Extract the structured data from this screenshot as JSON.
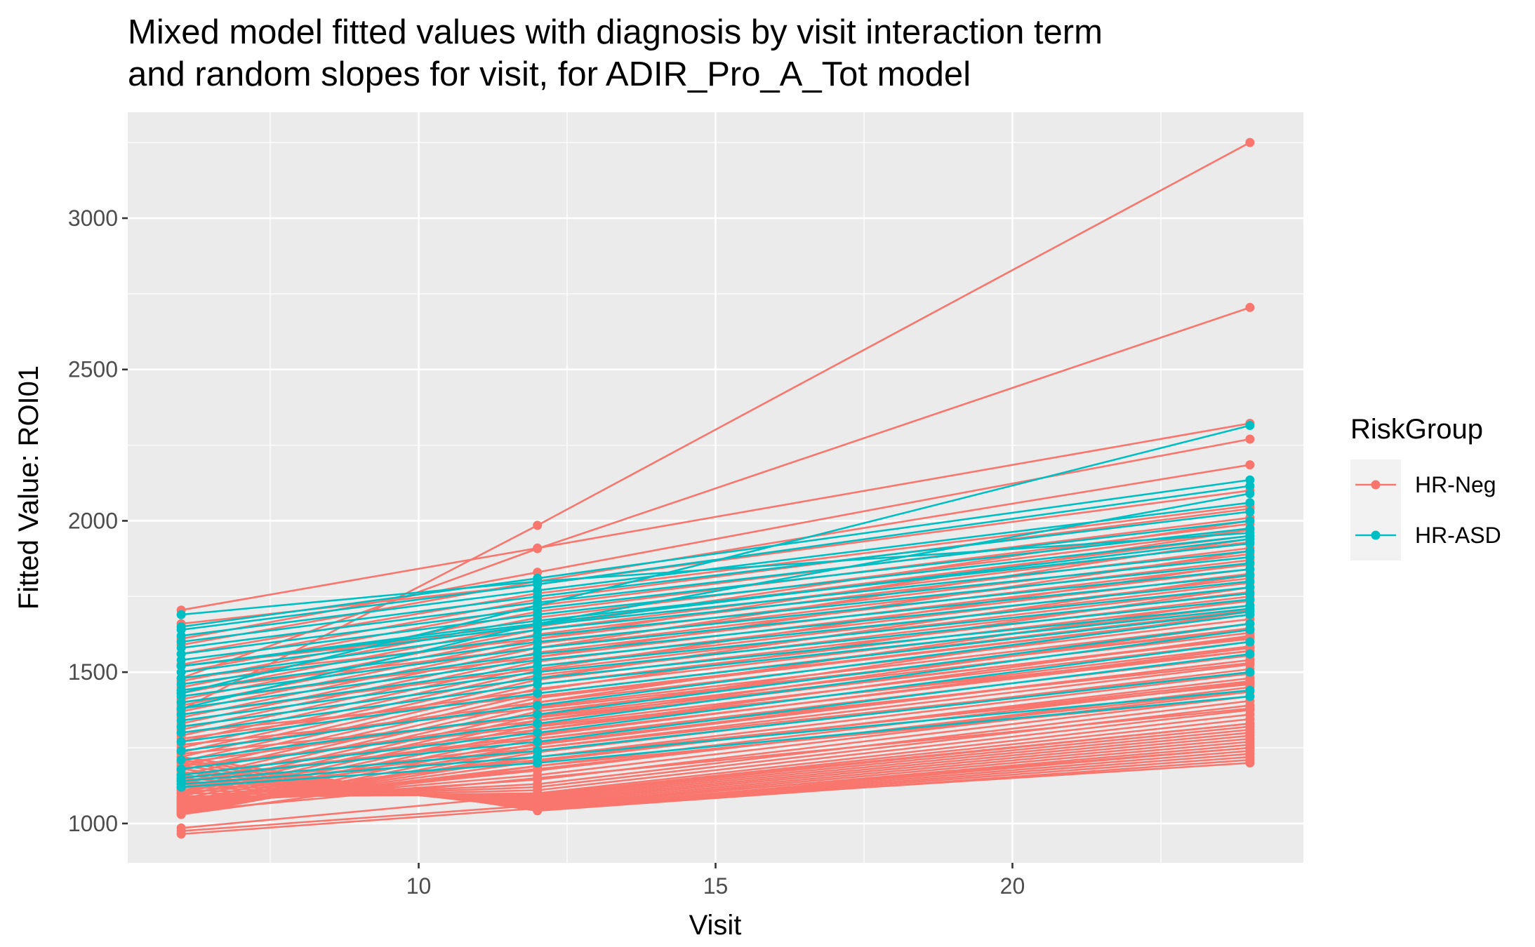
{
  "chart_data": {
    "type": "line",
    "title": "Mixed model fitted values with diagnosis by visit interaction term",
    "subtitle": "and random slopes for visit, for ADIR_Pro_A_Tot model",
    "xlabel": "Visit",
    "ylabel": "Fitted Value: ROI01",
    "xlim": [
      5.1,
      24.9
    ],
    "ylim": [
      870,
      3350
    ],
    "x_ticks": [
      10,
      15,
      20
    ],
    "y_ticks": [
      1000,
      1500,
      2000,
      2500,
      3000
    ],
    "x_tick_labels": [
      "10",
      "15",
      "20"
    ],
    "y_tick_labels": [
      "1000",
      "1500",
      "2000",
      "2500",
      "3000"
    ],
    "grid": true,
    "legend": {
      "title": "RiskGroup",
      "position": "right"
    },
    "x": [
      6,
      12,
      24
    ],
    "series": [
      {
        "name": "HR-Neg",
        "color": "#F8766D",
        "lines": [
          [
            1375,
            1985,
            3250
          ],
          [
            1480,
            1908,
            2705
          ],
          [
            1705,
            1910,
            2322
          ],
          [
            1610,
            1830,
            2270
          ],
          [
            1590,
            1800,
            2185
          ],
          [
            1660,
            1790,
            2100
          ],
          [
            1560,
            1760,
            2050
          ],
          [
            1525,
            1740,
            2040
          ],
          [
            1500,
            1720,
            2010
          ],
          [
            1470,
            1700,
            1990
          ],
          [
            1450,
            1680,
            1970
          ],
          [
            1430,
            1660,
            1950
          ],
          [
            1410,
            1640,
            1930
          ],
          [
            1390,
            1625,
            1910
          ],
          [
            1370,
            1610,
            1890
          ],
          [
            1350,
            1595,
            1870
          ],
          [
            1330,
            1580,
            1855
          ],
          [
            1310,
            1565,
            1840
          ],
          [
            1290,
            1550,
            1825
          ],
          [
            1270,
            1535,
            1810
          ],
          [
            1250,
            1520,
            1795
          ],
          [
            1235,
            1505,
            1780
          ],
          [
            1220,
            1490,
            1765
          ],
          [
            1205,
            1475,
            1750
          ],
          [
            1190,
            1460,
            1735
          ],
          [
            1175,
            1445,
            1720
          ],
          [
            1160,
            1430,
            1705
          ],
          [
            1145,
            1415,
            1690
          ],
          [
            1130,
            1400,
            1675
          ],
          [
            1115,
            1385,
            1660
          ],
          [
            1100,
            1370,
            1645
          ],
          [
            1090,
            1355,
            1630
          ],
          [
            1080,
            1340,
            1615
          ],
          [
            1070,
            1325,
            1600
          ],
          [
            1060,
            1310,
            1585
          ],
          [
            1050,
            1295,
            1570
          ],
          [
            1040,
            1280,
            1555
          ],
          [
            1035,
            1265,
            1540
          ],
          [
            1030,
            1250,
            1525
          ],
          [
            1035,
            1235,
            1510
          ],
          [
            1040,
            1220,
            1495
          ],
          [
            1045,
            1205,
            1480
          ],
          [
            1050,
            1190,
            1465
          ],
          [
            1055,
            1175,
            1450
          ],
          [
            1060,
            1160,
            1435
          ],
          [
            1065,
            1145,
            1420
          ],
          [
            1070,
            1130,
            1405
          ],
          [
            1075,
            1120,
            1390
          ],
          [
            1080,
            1110,
            1375
          ],
          [
            1085,
            1100,
            1360
          ],
          [
            1090,
            1095,
            1345
          ],
          [
            1100,
            1090,
            1330
          ],
          [
            1110,
            1085,
            1320
          ],
          [
            1120,
            1080,
            1310
          ],
          [
            1130,
            1075,
            1300
          ],
          [
            1140,
            1070,
            1290
          ],
          [
            1150,
            1065,
            1280
          ],
          [
            1160,
            1060,
            1270
          ],
          [
            1170,
            1055,
            1260
          ],
          [
            1180,
            1050,
            1250
          ],
          [
            1190,
            1048,
            1240
          ],
          [
            1200,
            1046,
            1230
          ],
          [
            1210,
            1044,
            1220
          ],
          [
            1220,
            1042,
            1210
          ],
          [
            985,
            1095,
            1330
          ],
          [
            975,
            1060,
            1250
          ],
          [
            965,
            1050,
            1200
          ],
          [
            1040,
            1150,
            1380
          ],
          [
            1060,
            1180,
            1440
          ],
          [
            1080,
            1210,
            1470
          ],
          [
            1100,
            1240,
            1500
          ],
          [
            1120,
            1260,
            1540
          ],
          [
            1140,
            1290,
            1580
          ],
          [
            1160,
            1310,
            1620
          ],
          [
            1180,
            1340,
            1660
          ],
          [
            1200,
            1360,
            1700
          ],
          [
            1240,
            1400,
            1740
          ],
          [
            1280,
            1440,
            1780
          ],
          [
            1320,
            1480,
            1820
          ],
          [
            1360,
            1510,
            1860
          ],
          [
            1400,
            1550,
            1900
          ],
          [
            1440,
            1580,
            1940
          ],
          [
            1480,
            1610,
            1970
          ],
          [
            1520,
            1650,
            2000
          ],
          [
            1300,
            1420,
            1690
          ],
          [
            1260,
            1380,
            1640
          ],
          [
            1230,
            1350,
            1610
          ],
          [
            1190,
            1320,
            1570
          ],
          [
            1150,
            1280,
            1530
          ],
          [
            1110,
            1250,
            1500
          ],
          [
            1070,
            1220,
            1460
          ],
          [
            1030,
            1190,
            1420
          ]
        ]
      },
      {
        "name": "HR-ASD",
        "color": "#00BFC4",
        "lines": [
          [
            1430,
            1720,
            2315
          ],
          [
            1650,
            1810,
            2135
          ],
          [
            1640,
            1790,
            2115
          ],
          [
            1380,
            1660,
            2090
          ],
          [
            1620,
            1770,
            2060
          ],
          [
            1600,
            1750,
            2030
          ],
          [
            1580,
            1730,
            2000
          ],
          [
            1560,
            1710,
            1975
          ],
          [
            1540,
            1690,
            1950
          ],
          [
            1520,
            1670,
            1925
          ],
          [
            1500,
            1655,
            1900
          ],
          [
            1480,
            1640,
            1880
          ],
          [
            1460,
            1620,
            1860
          ],
          [
            1440,
            1600,
            1840
          ],
          [
            1420,
            1580,
            1820
          ],
          [
            1400,
            1560,
            1800
          ],
          [
            1380,
            1540,
            1780
          ],
          [
            1360,
            1520,
            1760
          ],
          [
            1340,
            1500,
            1740
          ],
          [
            1320,
            1480,
            1720
          ],
          [
            1300,
            1460,
            1710
          ],
          [
            1270,
            1430,
            1700
          ],
          [
            1240,
            1390,
            1690
          ],
          [
            1210,
            1360,
            1660
          ],
          [
            1180,
            1330,
            1640
          ],
          [
            1160,
            1300,
            1600
          ],
          [
            1150,
            1270,
            1560
          ],
          [
            1140,
            1240,
            1500
          ],
          [
            1130,
            1220,
            1440
          ],
          [
            1120,
            1200,
            1420
          ],
          [
            1690,
            1800,
            1960
          ],
          [
            1520,
            1660,
            1940
          ]
        ]
      }
    ]
  }
}
